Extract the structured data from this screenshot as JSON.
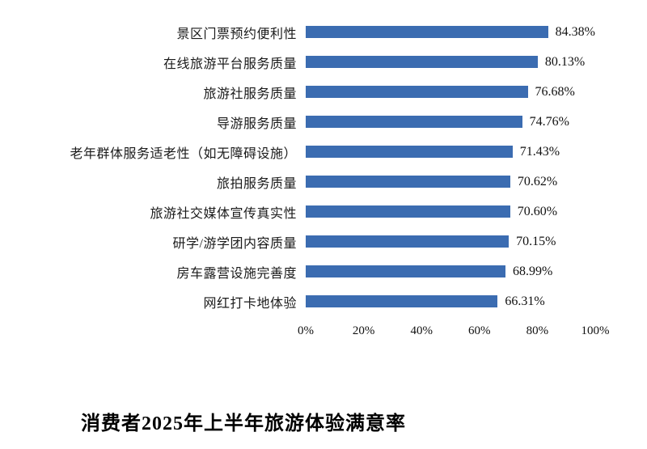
{
  "chart_data": {
    "type": "bar",
    "orientation": "horizontal",
    "title": "消费者2025年上半年旅游体验满意率",
    "categories": [
      "景区门票预约便利性",
      "在线旅游平台服务质量",
      "旅游社服务质量",
      "导游服务质量",
      "老年群体服务适老性（如无障碍设施）",
      "旅拍服务质量",
      "旅游社交媒体宣传真实性",
      "研学/游学团内容质量",
      "房车露营设施完善度",
      "网红打卡地体验"
    ],
    "values": [
      84.38,
      80.13,
      76.68,
      74.76,
      71.43,
      70.62,
      70.6,
      70.15,
      68.99,
      66.31
    ],
    "value_labels": [
      "84.38%",
      "80.13%",
      "76.68%",
      "74.76%",
      "71.43%",
      "70.62%",
      "70.60%",
      "70.15%",
      "68.99%",
      "66.31%"
    ],
    "x_ticks": [
      "0%",
      "20%",
      "40%",
      "60%",
      "80%",
      "100%"
    ],
    "xlim": [
      0,
      100
    ],
    "bar_color": "#3b6cb1",
    "grid": false,
    "legend": false,
    "ylabel": "",
    "xlabel": ""
  }
}
